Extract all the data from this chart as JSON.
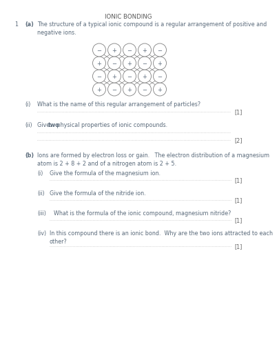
{
  "title": "IONIC BONDING",
  "bg_color": "#ffffff",
  "text_color": "#5a6a7a",
  "title_color": "#555555",
  "q1_label": "1",
  "qa_label": "(a)",
  "qa_text": "The structure of a typical ionic compound is a regular arrangement of positive and\nnegative ions.",
  "qi_label": "(i)",
  "qi_text": "What is the name of this regular arrangement of particles?",
  "qi_mark": "[1]",
  "qii_label": "(ii)",
  "qii_text_pre": "Give ",
  "qii_text_bold": "two",
  "qii_text_post": " physical properties of ionic compounds.",
  "qii_mark": "[2]",
  "qb_label": "(b)",
  "qb_text": "Ions are formed by electron loss or gain.   The electron distribution of a magnesium\natom is 2 + 8 + 2 and of a nitrogen atom is 2 + 5.",
  "qbi_label": "(i)",
  "qbi_text": "Give the formula of the magnesium ion.",
  "qbi_mark": "[1]",
  "qbii_label": "(ii)",
  "qbii_text": "Give the formula of the nitride ion.",
  "qbii_mark": "[1]",
  "qbiii_label": "(iii)",
  "qbiii_text": "What is the formula of the ionic compound, magnesium nitride?",
  "qbiii_mark": "[1]",
  "qbiv_label": "(iv)",
  "qbiv_text": "In this compound there is an ionic bond.  Why are the two ions attracted to each\nother?",
  "qbiv_mark": "[1]"
}
